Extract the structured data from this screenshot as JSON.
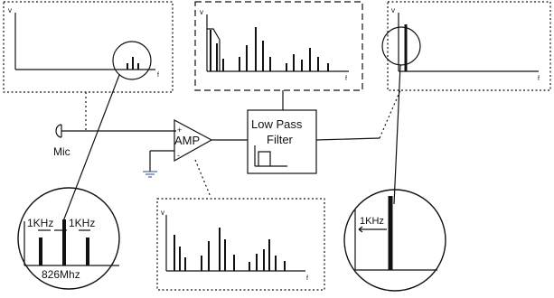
{
  "axes": {
    "v": "v",
    "f": "f"
  },
  "mic": {
    "label": "Mic"
  },
  "amp": {
    "label": "AMP",
    "plus": "+",
    "minus": "-"
  },
  "lpf": {
    "line1": "Low Pass",
    "line2": "Filter"
  },
  "zoom_left": {
    "spacing_left": "1KHz",
    "spacing_right": "1KHz",
    "carrier": "826Mhz"
  },
  "zoom_right": {
    "spacing": "1KHz"
  },
  "colors": {
    "stroke": "#111111",
    "background": "#ffffff",
    "ground": "#4a6a9a"
  }
}
